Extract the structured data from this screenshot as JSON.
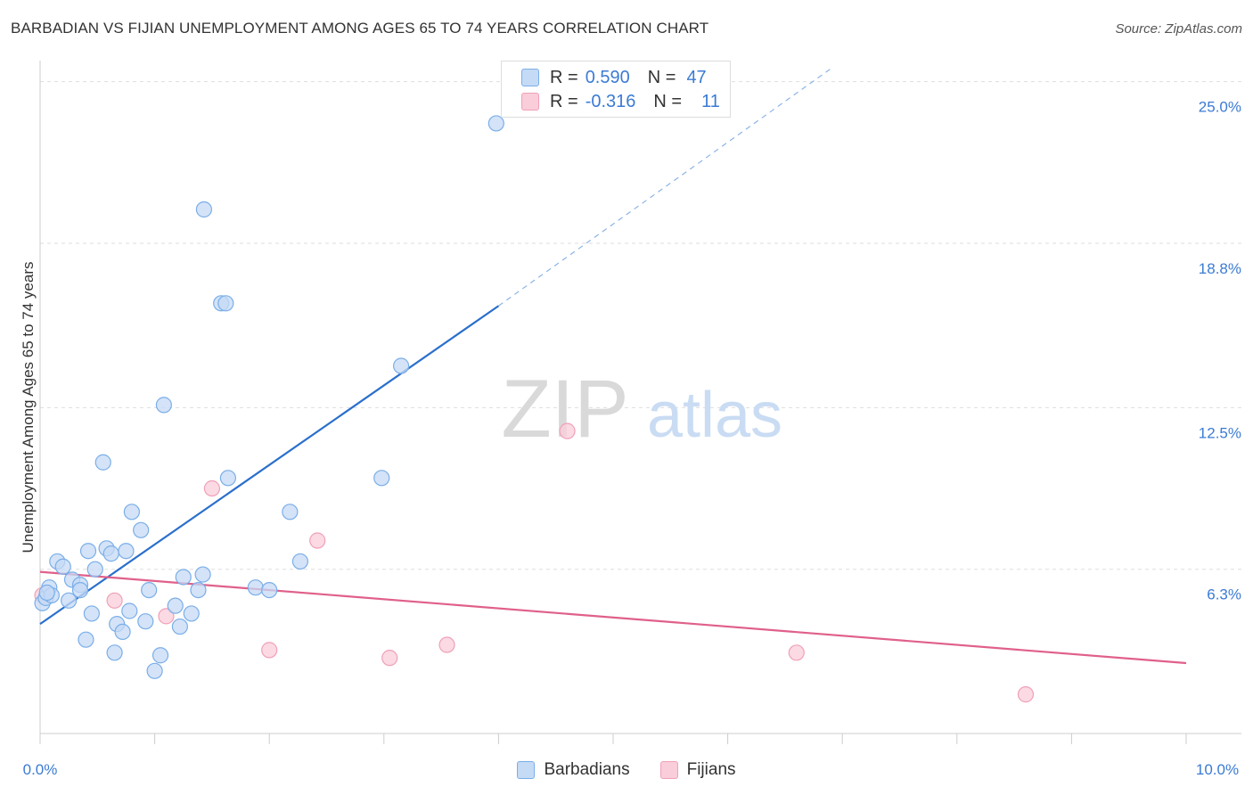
{
  "chart_data": {
    "type": "scatter",
    "title": "BARBADIAN VS FIJIAN UNEMPLOYMENT AMONG AGES 65 TO 74 YEARS CORRELATION CHART",
    "source": "Source: ZipAtlas.com",
    "xlabel": "",
    "ylabel": "Unemployment Among Ages 65 to 74 years",
    "xlim": [
      0,
      10
    ],
    "ylim": [
      0,
      25.5
    ],
    "x_tick_labels": [
      "0.0%",
      "10.0%"
    ],
    "y_ticks": [
      6.3,
      12.5,
      18.8,
      25.0
    ],
    "y_tick_labels": [
      "6.3%",
      "12.5%",
      "18.8%",
      "25.0%"
    ],
    "grid": true,
    "watermark": {
      "zip": "ZIP",
      "atlas": "atlas"
    },
    "legend": {
      "rows": [
        {
          "r_label": "R =",
          "r_value": "0.590",
          "n_label": "N =",
          "n_value": "47"
        },
        {
          "r_label": "R =",
          "r_value": "-0.316",
          "n_label": "N =",
          "n_value": "11"
        }
      ]
    },
    "series": [
      {
        "name": "Barbadians",
        "color": "#7aaee8",
        "fill": "#c5daf5",
        "line_color": "#2a6fcc",
        "points": [
          [
            0.02,
            5.0
          ],
          [
            0.05,
            5.2
          ],
          [
            0.08,
            5.6
          ],
          [
            0.1,
            5.3
          ],
          [
            0.15,
            6.6
          ],
          [
            0.2,
            6.4
          ],
          [
            0.25,
            5.1
          ],
          [
            0.28,
            5.9
          ],
          [
            0.35,
            5.7
          ],
          [
            0.35,
            5.5
          ],
          [
            0.4,
            3.6
          ],
          [
            0.42,
            7.0
          ],
          [
            0.45,
            4.6
          ],
          [
            0.48,
            6.3
          ],
          [
            0.55,
            10.4
          ],
          [
            0.58,
            7.1
          ],
          [
            0.62,
            6.9
          ],
          [
            0.65,
            3.1
          ],
          [
            0.67,
            4.2
          ],
          [
            0.72,
            3.9
          ],
          [
            0.75,
            7.0
          ],
          [
            0.78,
            4.7
          ],
          [
            0.8,
            8.5
          ],
          [
            0.88,
            7.8
          ],
          [
            0.92,
            4.3
          ],
          [
            0.95,
            5.5
          ],
          [
            1.0,
            2.4
          ],
          [
            1.05,
            3.0
          ],
          [
            1.08,
            12.6
          ],
          [
            1.18,
            4.9
          ],
          [
            1.22,
            4.1
          ],
          [
            1.25,
            6.0
          ],
          [
            1.32,
            4.6
          ],
          [
            1.38,
            5.5
          ],
          [
            1.42,
            6.1
          ],
          [
            1.43,
            20.1
          ],
          [
            1.58,
            16.5
          ],
          [
            1.62,
            16.5
          ],
          [
            1.64,
            9.8
          ],
          [
            1.88,
            5.6
          ],
          [
            2.0,
            5.5
          ],
          [
            2.18,
            8.5
          ],
          [
            2.27,
            6.6
          ],
          [
            2.98,
            9.8
          ],
          [
            3.15,
            14.1
          ],
          [
            3.98,
            23.4
          ],
          [
            0.06,
            5.4
          ]
        ],
        "fit_line": {
          "x0": 0,
          "y0": 4.2,
          "x1": 4.0,
          "y1": 16.4,
          "dash_x1": 6.9,
          "dash_y1": 25.5
        }
      },
      {
        "name": "Fijians",
        "color": "#f0a0b8",
        "fill": "#f9cdd9",
        "line_color": "#e0608a",
        "points": [
          [
            0.02,
            5.3
          ],
          [
            0.65,
            5.1
          ],
          [
            1.1,
            4.5
          ],
          [
            1.5,
            9.4
          ],
          [
            2.0,
            3.2
          ],
          [
            2.42,
            7.4
          ],
          [
            3.05,
            2.9
          ],
          [
            3.55,
            3.4
          ],
          [
            4.6,
            11.6
          ],
          [
            6.6,
            3.1
          ],
          [
            8.6,
            1.5
          ]
        ],
        "fit_line": {
          "x0": 0,
          "y0": 6.2,
          "x1": 10.0,
          "y1": 2.7
        }
      }
    ]
  }
}
